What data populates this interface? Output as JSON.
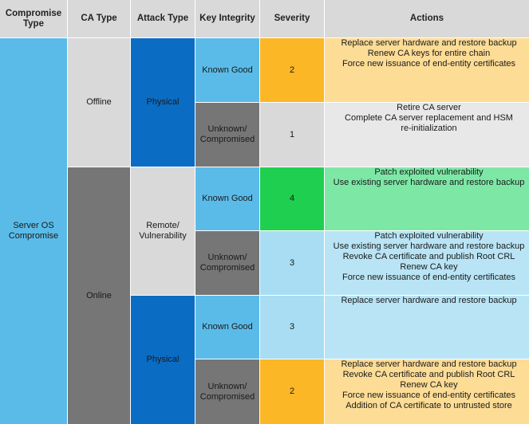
{
  "headers": {
    "compromise_type": "Compromise\nType",
    "ca_type": "CA Type",
    "attack_type": "Attack Type",
    "key_integrity": "Key Integrity",
    "severity": "Severity",
    "actions": "Actions"
  },
  "compromise_type": "Server OS\nCompromise",
  "ca_types": {
    "offline": "Offline",
    "online": "Online"
  },
  "attack_types": {
    "physical_offline": "Physical",
    "remote": "Remote/\nVulnerability",
    "physical_online": "Physical"
  },
  "rows": [
    {
      "key_integrity": "Known Good",
      "severity": "2",
      "actions": [
        "Replace server hardware and restore backup",
        "Renew CA keys for entire chain",
        "Force new issuance of end-entity certificates"
      ]
    },
    {
      "key_integrity": "Unknown/\nCompromised",
      "severity": "1",
      "actions": [
        "Retire CA server",
        "Complete CA server replacement and HSM",
        "re-initialization"
      ]
    },
    {
      "key_integrity": "Known Good",
      "severity": "4",
      "actions": [
        "Patch exploited vulnerability",
        "Use existing server hardware and restore backup"
      ]
    },
    {
      "key_integrity": "Unknown/\nCompromised",
      "severity": "3",
      "actions": [
        "Patch exploited vulnerability",
        "Use existing server hardware and restore backup",
        "Revoke CA certificate and publish Root CRL",
        "Renew CA key",
        "Force new issuance of end-entity certificates"
      ]
    },
    {
      "key_integrity": "Known Good",
      "severity": "3",
      "actions": [
        "Replace server hardware and restore backup"
      ]
    },
    {
      "key_integrity": "Unknown/\nCompromised",
      "severity": "2",
      "actions": [
        "Replace server hardware and restore backup",
        "Revoke CA certificate and publish Root CRL",
        "Renew CA key",
        "Force new issuance of end-entity certificates",
        "Addition of CA certificate to untrusted store"
      ]
    }
  ],
  "colors": {
    "header": "#d9d9d9",
    "compromise": "#5bbbe8",
    "offline": "#d9d9d9",
    "online": "#767676",
    "physical": "#0b6cc4",
    "remote": "#d9d9d9",
    "known_good": "#5bbbe8",
    "unknown": "#767676",
    "sev_orange": "#fbb726",
    "sev_grey": "#d9d9d9",
    "sev_green": "#1fcf50",
    "sev_blue": "#a8ddf3",
    "act_orange": "#fddc96",
    "act_grey": "#e8e8e8",
    "act_green": "#7de8a6",
    "act_blue": "#b9e4f5"
  }
}
